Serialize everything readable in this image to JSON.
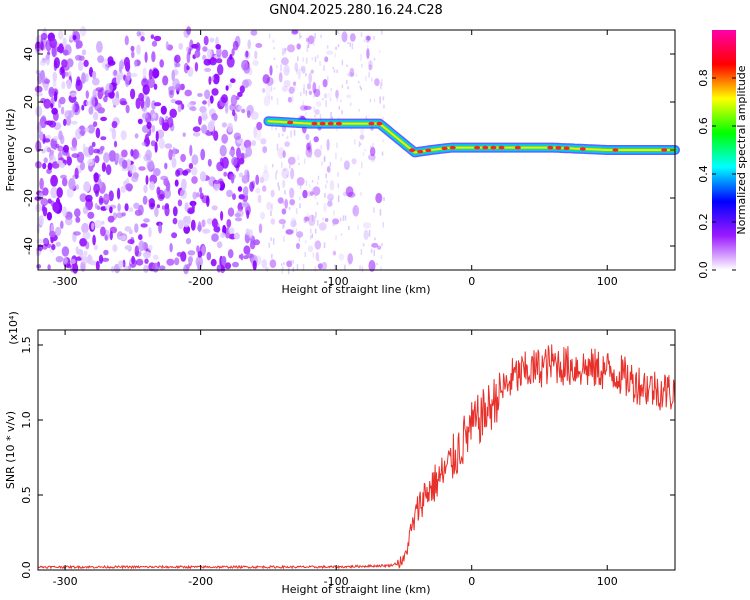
{
  "title": "GN04.2025.280.16.24.C28",
  "chart_data": [
    {
      "type": "heatmap",
      "xlabel": "Height of straight line (km)",
      "ylabel": "Frequency (Hz)",
      "xlim": [
        -320,
        150
      ],
      "ylim": [
        -50,
        50
      ],
      "x_ticks": [
        -300,
        -200,
        -100,
        0,
        100
      ],
      "x_tick_labels": [
        "-300",
        "-200",
        "-100",
        "0",
        "100"
      ],
      "y_ticks": [
        -40,
        -20,
        0,
        20,
        40
      ],
      "y_tick_labels": [
        "-40",
        "-20",
        "0",
        "20",
        "40"
      ],
      "ridge_x": [
        -150,
        -120,
        -100,
        -80,
        -68,
        -55,
        -42,
        -30,
        -15,
        0,
        30,
        60,
        100,
        150
      ],
      "ridge_freq": [
        12,
        11,
        11,
        11,
        11,
        5,
        -1,
        0,
        1,
        1,
        1,
        1,
        0,
        0
      ],
      "colorbar": {
        "label": "Normalized spectral amplitude",
        "range": [
          0,
          1
        ],
        "ticks": [
          0.0,
          0.2,
          0.4,
          0.6,
          0.8
        ],
        "tick_labels": [
          "0.0",
          "0.2",
          "0.4",
          "0.6",
          "0.8"
        ],
        "colors": [
          "#ffffff",
          "#9a1aff",
          "#0000ff",
          "#00ffff",
          "#00ff00",
          "#ffff00",
          "#ff0000",
          "#ff00aa"
        ]
      },
      "grid": false
    },
    {
      "type": "line",
      "xlabel": "Height of straight line (km)",
      "ylabel": "SNR (10 * v/v)",
      "y_multiplier": "(x10⁴)",
      "xlim": [
        -320,
        150
      ],
      "ylim": [
        0,
        1.6
      ],
      "x_ticks": [
        -300,
        -200,
        -100,
        0,
        100
      ],
      "x_tick_labels": [
        "-300",
        "-200",
        "-100",
        "0",
        "100"
      ],
      "y_ticks": [
        0,
        0.5,
        1.0,
        1.5
      ],
      "y_tick_labels": [
        "0.0",
        "0.5",
        "1.0",
        "1.5"
      ],
      "series": [
        {
          "color": "#e8302a",
          "x": [
            -320,
            -250,
            -150,
            -100,
            -60,
            -50,
            -45,
            -40,
            -35,
            -30,
            -25,
            -20,
            -15,
            -10,
            -5,
            0,
            5,
            10,
            15,
            20,
            25,
            30,
            40,
            50,
            60,
            70,
            80,
            90,
            100,
            110,
            120,
            130,
            140,
            150
          ],
          "y": [
            0.02,
            0.02,
            0.02,
            0.02,
            0.03,
            0.06,
            0.25,
            0.4,
            0.5,
            0.55,
            0.6,
            0.65,
            0.72,
            0.8,
            0.88,
            0.95,
            1.0,
            1.05,
            1.1,
            1.18,
            1.22,
            1.28,
            1.32,
            1.35,
            1.38,
            1.36,
            1.35,
            1.34,
            1.33,
            1.3,
            1.25,
            1.22,
            1.2,
            1.18
          ]
        }
      ],
      "grid": false
    }
  ]
}
